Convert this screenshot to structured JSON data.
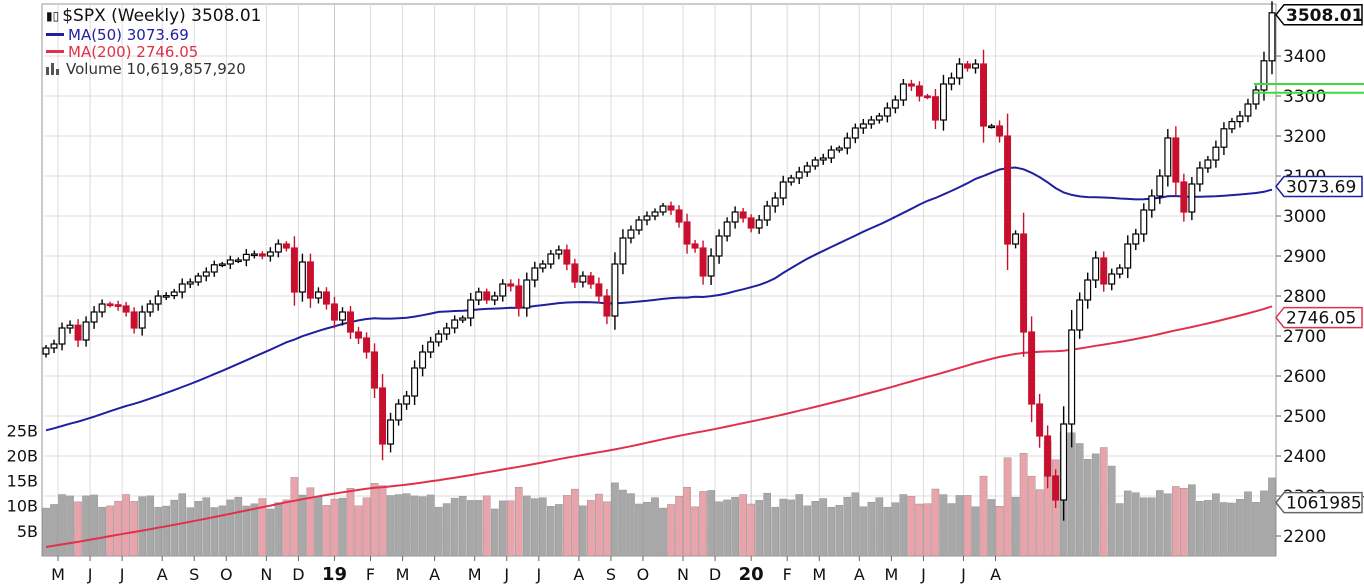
{
  "legend": {
    "title": "$SPX (Weekly) 3508.01",
    "ma50": "MA(50) 3073.69",
    "ma200": "MA(200) 2746.05",
    "volume": "Volume 10,619,857,920"
  },
  "colors": {
    "up": "#ffffff",
    "down": "#c8102e",
    "ma50": "#1f1fa0",
    "ma200": "#e0304a",
    "vol_up": "#a8a8a8",
    "vol_down": "#e9a3ab",
    "grid": "#dcdcdc",
    "alert": "#3ddc3d"
  },
  "chart_data": {
    "type": "candlestick",
    "title": "$SPX (Weekly) 3508.01",
    "price_axis": {
      "ylim": [
        2150,
        3530
      ],
      "ticks": [
        2200,
        2300,
        2400,
        2500,
        2600,
        2700,
        2800,
        2900,
        3000,
        3100,
        3200,
        3300,
        3400
      ]
    },
    "volume_axis": {
      "ylim": [
        0,
        35
      ],
      "unit": "B",
      "tick_labels": [
        "5B",
        "10B",
        "15B",
        "20B",
        "25B"
      ],
      "tick_values": [
        5,
        10,
        15,
        20,
        25
      ]
    },
    "x_labels": [
      "M",
      "J",
      "J",
      "A",
      "S",
      "O",
      "N",
      "D",
      "19",
      "F",
      "M",
      "A",
      "M",
      "J",
      "J",
      "A",
      "S",
      "O",
      "N",
      "D",
      "20",
      "F",
      "M",
      "A",
      "M",
      "J",
      "J",
      "A"
    ],
    "x_label_weeks": [
      2,
      6,
      10,
      15,
      19,
      23,
      28,
      32,
      36.5,
      41,
      45,
      49,
      54,
      58,
      62,
      67,
      71,
      75,
      80,
      84,
      88.5,
      93,
      97,
      102,
      106,
      110,
      115,
      119
    ],
    "weekly_closes": [
      2670,
      2680,
      2720,
      2727,
      2690,
      2735,
      2760,
      2780,
      2778,
      2775,
      2760,
      2720,
      2760,
      2780,
      2800,
      2801,
      2810,
      2830,
      2835,
      2850,
      2860,
      2878,
      2880,
      2890,
      2890,
      2904,
      2905,
      2900,
      2910,
      2930,
      2920,
      2810,
      2885,
      2795,
      2810,
      2780,
      2740,
      2760,
      2710,
      2695,
      2660,
      2570,
      2430,
      2490,
      2530,
      2550,
      2620,
      2660,
      2685,
      2705,
      2720,
      2740,
      2745,
      2790,
      2810,
      2790,
      2800,
      2830,
      2825,
      2770,
      2840,
      2870,
      2880,
      2905,
      2915,
      2880,
      2835,
      2850,
      2830,
      2800,
      2750,
      2880,
      2945,
      2965,
      2990,
      3000,
      3010,
      3025,
      3015,
      2985,
      2930,
      2920,
      2850,
      2900,
      2950,
      2985,
      3010,
      2995,
      2970,
      2990,
      3025,
      3045,
      3085,
      3095,
      3110,
      3125,
      3140,
      3145,
      3165,
      3170,
      3195,
      3220,
      3230,
      3240,
      3250,
      3270,
      3290,
      3330,
      3325,
      3300,
      3298,
      3240,
      3330,
      3345,
      3380,
      3370,
      3380,
      3225,
      3225,
      3200,
      2930,
      2955,
      2710,
      2530,
      2450,
      2350,
      2290,
      2480,
      2715,
      2790,
      2840,
      2895,
      2830,
      2855,
      2870,
      2930,
      2955,
      3015,
      3050,
      3100,
      3195,
      3085,
      3010,
      3080,
      3120,
      3140,
      3172,
      3218,
      3236,
      3250,
      3280,
      3315,
      3388,
      3508.01
    ],
    "series": [
      {
        "name": "MA(50)",
        "last": 3073.69
      },
      {
        "name": "MA(200)",
        "last": 2746.05
      },
      {
        "name": "Volume",
        "last": 10619857920
      }
    ],
    "last_labels": {
      "price": "3508.01",
      "ma50": "3073.69",
      "ma200": "2746.05",
      "volume": "10619857920"
    },
    "grid": true
  }
}
